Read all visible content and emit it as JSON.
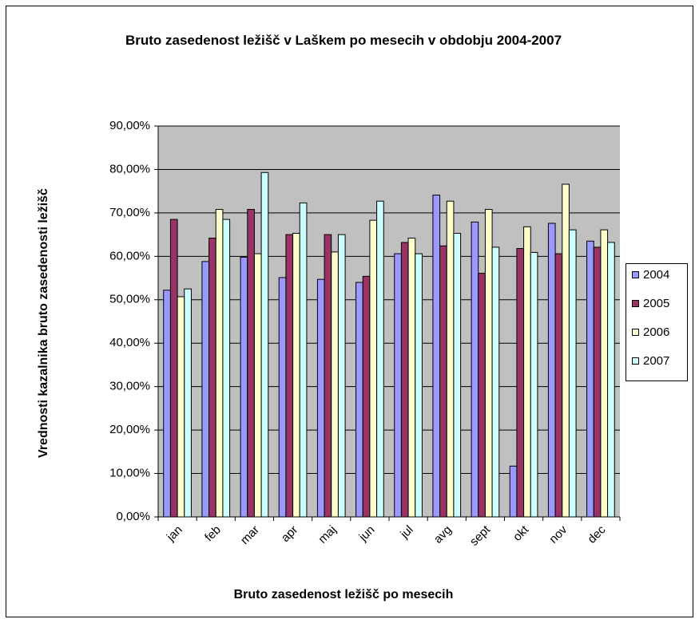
{
  "chart_data": {
    "type": "bar",
    "title": "Bruto zasedenost ležišč v Laškem po mesecih v obdobju 2004-2007",
    "xlabel": "Bruto zasedenost ležišč po mesecih",
    "ylabel": "Vrednosti kazalnika bruto zasedenosti ležišč",
    "categories": [
      "jan",
      "feb",
      "mar",
      "apr",
      "maj",
      "jun",
      "jul",
      "avg",
      "sept",
      "okt",
      "nov",
      "dec"
    ],
    "series": [
      {
        "name": "2004",
        "color": "#9999ff",
        "values": [
          52.2,
          58.8,
          59.8,
          55.1,
          54.7,
          54.0,
          60.6,
          74.1,
          67.9,
          11.7,
          67.6,
          63.5
        ]
      },
      {
        "name": "2005",
        "color": "#993366",
        "values": [
          68.5,
          64.2,
          70.8,
          65.0,
          65.0,
          55.4,
          63.2,
          62.4,
          56.1,
          61.8,
          60.6,
          62.1
        ]
      },
      {
        "name": "2006",
        "color": "#ffffcc",
        "values": [
          50.7,
          70.8,
          60.6,
          65.3,
          61.0,
          68.3,
          64.2,
          72.7,
          70.8,
          66.8,
          76.6,
          66.1
        ]
      },
      {
        "name": "2007",
        "color": "#ccffff",
        "values": [
          52.5,
          68.5,
          79.3,
          72.3,
          65.0,
          72.7,
          60.6,
          65.3,
          62.1,
          60.9,
          66.1,
          63.2
        ]
      }
    ],
    "ylim": [
      0,
      90
    ],
    "yticks": [
      {
        "value": 0,
        "label": "0,00%"
      },
      {
        "value": 10,
        "label": "10,00%"
      },
      {
        "value": 20,
        "label": "20,00%"
      },
      {
        "value": 30,
        "label": "30,00%"
      },
      {
        "value": 40,
        "label": "40,00%"
      },
      {
        "value": 50,
        "label": "50,00%"
      },
      {
        "value": 60,
        "label": "60,00%"
      },
      {
        "value": 70,
        "label": "70,00%"
      },
      {
        "value": 80,
        "label": "80,00%"
      },
      {
        "value": 90,
        "label": "90,00%"
      }
    ],
    "grid": true,
    "legend": "right"
  }
}
